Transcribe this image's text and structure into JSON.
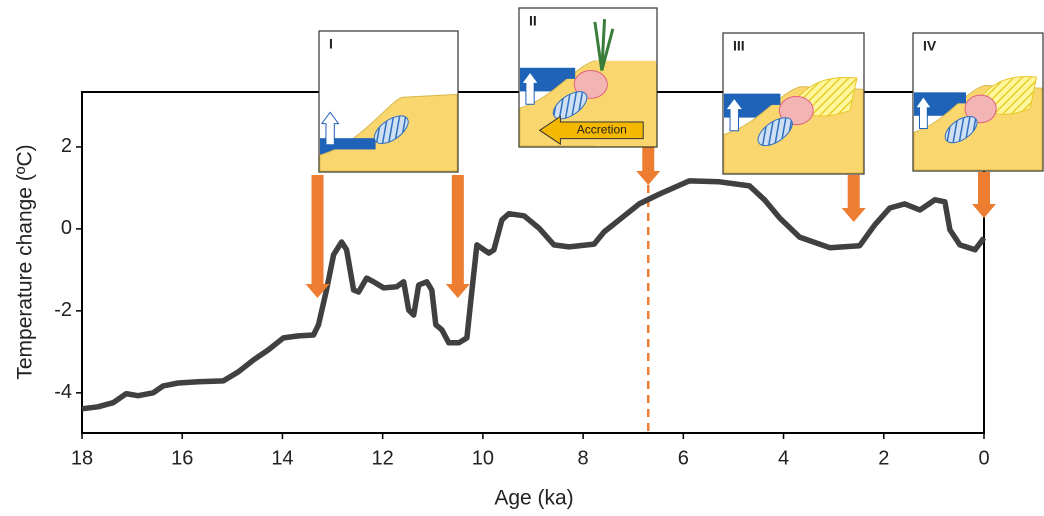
{
  "chart_data": {
    "type": "line",
    "x_label": "Age (ka)",
    "y_label": "Temperature change (ºC)",
    "x": [
      18,
      17.68,
      17.38,
      17.12,
      16.88,
      16.58,
      16.38,
      16.08,
      15.68,
      15.18,
      14.88,
      14.58,
      14.28,
      13.98,
      13.68,
      13.38,
      13.28,
      13.12,
      12.98,
      12.82,
      12.72,
      12.58,
      12.48,
      12.32,
      12.18,
      11.98,
      11.72,
      11.58,
      11.48,
      11.38,
      11.28,
      11.12,
      11.02,
      10.94,
      10.82,
      10.68,
      10.48,
      10.32,
      10.24,
      10.12,
      9.98,
      9.88,
      9.78,
      9.62,
      9.48,
      9.18,
      8.88,
      8.58,
      8.28,
      7.78,
      7.58,
      7.28,
      6.88,
      6.48,
      5.88,
      5.28,
      4.68,
      4.38,
      4.08,
      3.68,
      3.08,
      2.48,
      2.18,
      1.88,
      1.58,
      1.28,
      0.98,
      0.78,
      0.68,
      0.48,
      0.18,
      0
    ],
    "values": [
      -4.39,
      -4.34,
      -4.24,
      -4.02,
      -4.07,
      -4.0,
      -3.83,
      -3.76,
      -3.73,
      -3.71,
      -3.49,
      -3.2,
      -2.95,
      -2.66,
      -2.61,
      -2.59,
      -2.34,
      -1.49,
      -0.63,
      -0.32,
      -0.51,
      -1.49,
      -1.54,
      -1.2,
      -1.29,
      -1.44,
      -1.41,
      -1.29,
      -1.98,
      -2.1,
      -1.37,
      -1.29,
      -1.49,
      -2.34,
      -2.46,
      -2.78,
      -2.78,
      -2.66,
      -1.73,
      -0.39,
      -0.51,
      -0.59,
      -0.51,
      0.22,
      0.37,
      0.32,
      0.02,
      -0.39,
      -0.44,
      -0.37,
      -0.07,
      0.22,
      0.61,
      0.85,
      1.17,
      1.15,
      1.05,
      0.71,
      0.27,
      -0.2,
      -0.46,
      -0.41,
      0.1,
      0.51,
      0.61,
      0.46,
      0.71,
      0.66,
      -0.02,
      -0.39,
      -0.51,
      -0.22
    ],
    "color": "#404040",
    "xlim": [
      18,
      0
    ],
    "xticks": [
      18,
      16,
      14,
      12,
      10,
      8,
      6,
      4,
      2,
      0
    ],
    "ylim": [
      -4.98,
      3.34
    ],
    "yticks": [
      2,
      0,
      -2,
      -4
    ],
    "arrows_at": [
      13.3,
      10.5,
      6.7,
      2.6,
      0
    ],
    "arrow_color": "#ed7d31",
    "dashed_at": 6.7,
    "panel_labels": [
      "I",
      "II",
      "III",
      "IV"
    ],
    "accretion_label": "Accretion"
  }
}
